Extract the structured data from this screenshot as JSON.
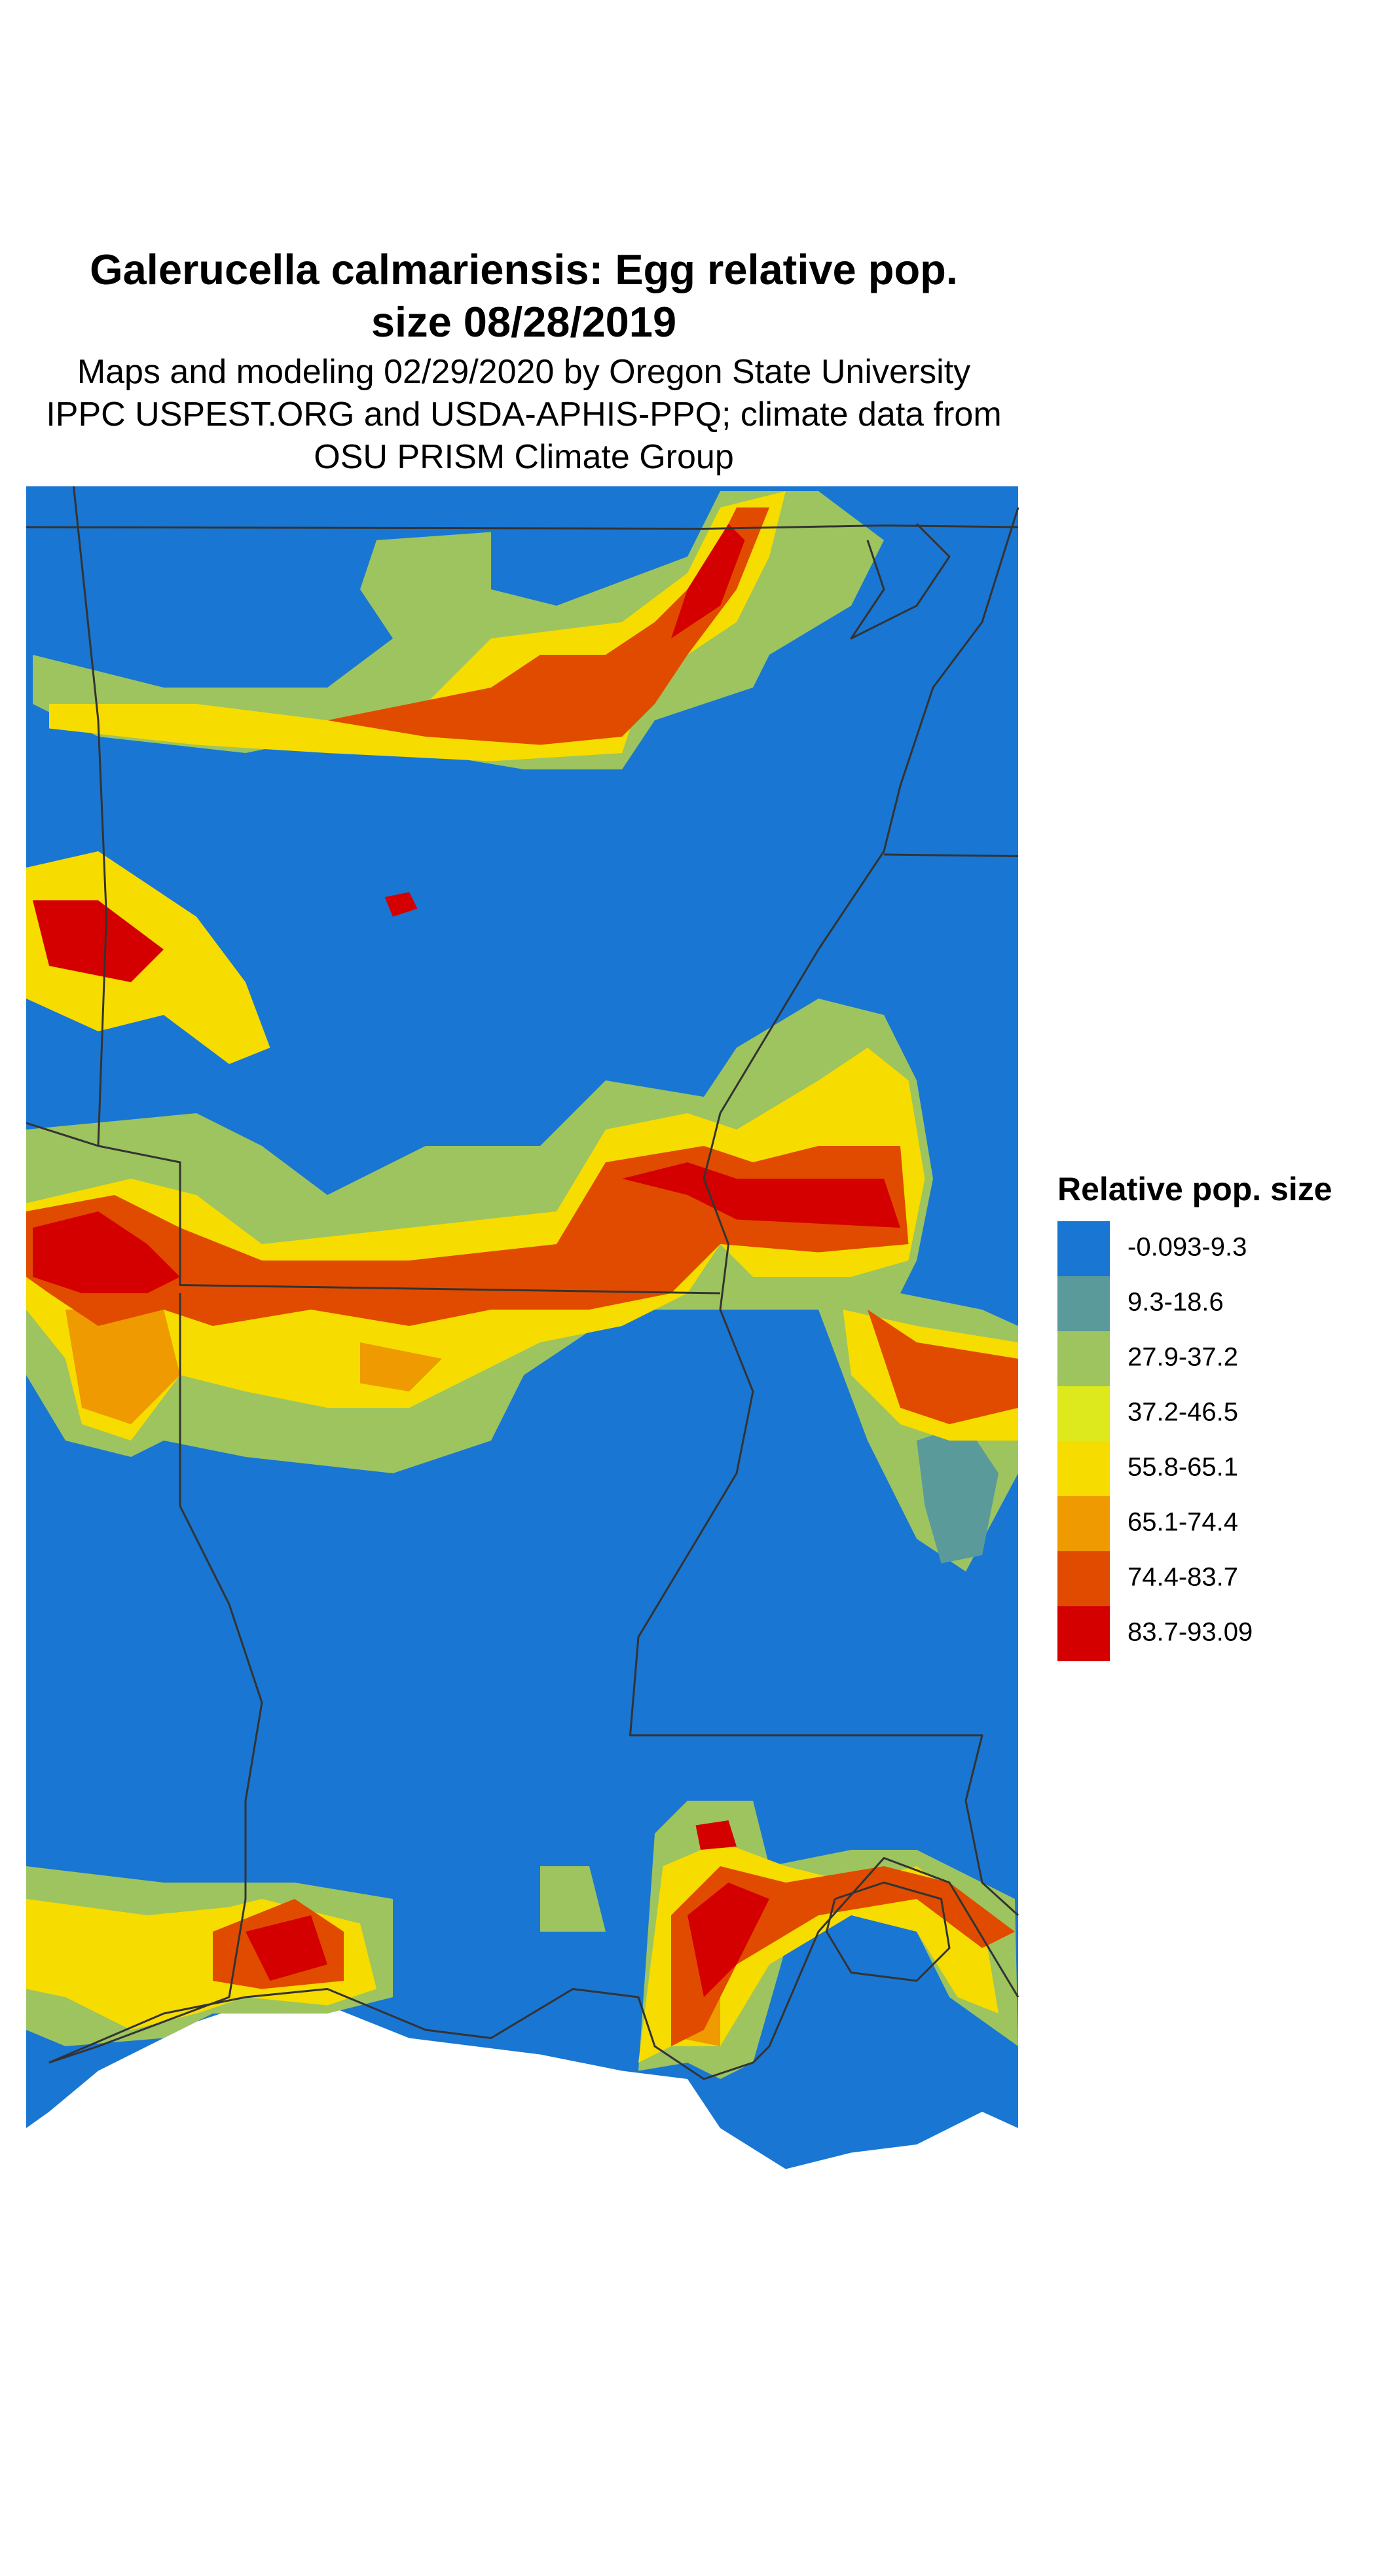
{
  "title": [
    "Galerucella calmariensis: Egg relative pop.",
    "size 08/28/2019"
  ],
  "subtitle": [
    "Maps and modeling 02/29/2020 by Oregon State University",
    "IPPC USPEST.ORG and USDA-APHIS-PPQ; climate data from",
    "OSU PRISM Climate Group"
  ],
  "legend": {
    "title": "Relative pop. size",
    "items": [
      {
        "label": "-0.093-9.3",
        "color": "#1976d2"
      },
      {
        "label": "9.3-18.6",
        "color": "#5a9a9a"
      },
      {
        "label": "27.9-37.2",
        "color": "#9dc45f"
      },
      {
        "label": "37.2-46.5",
        "color": "#dde91c"
      },
      {
        "label": "55.8-65.1",
        "color": "#f7dc00"
      },
      {
        "label": "65.1-74.4",
        "color": "#ee9a00"
      },
      {
        "label": "74.4-83.7",
        "color": "#e04b00"
      },
      {
        "label": "83.7-93.09",
        "color": "#d40000"
      }
    ]
  }
}
